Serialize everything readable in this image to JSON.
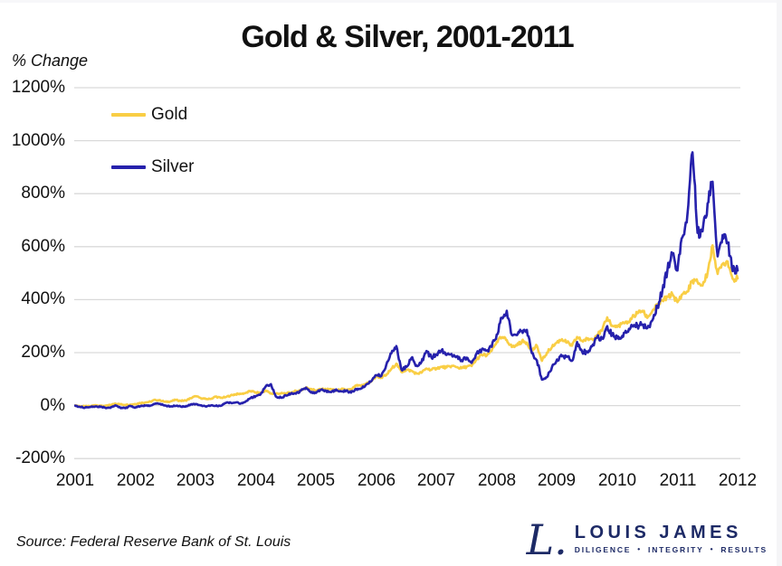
{
  "title": "Gold & Silver, 2001-2011",
  "y_axis_title": "% Change",
  "legend": {
    "items": [
      {
        "label": "Gold",
        "color": "#F9CE45"
      },
      {
        "label": "Silver",
        "color": "#2621AC"
      }
    ]
  },
  "footer": {
    "source": "Source: Federal Reserve Bank of St. Louis"
  },
  "logo": {
    "monogram": "L.",
    "name": "LOUIS JAMES",
    "tagline_parts": [
      "DILIGENCE",
      "INTEGRITY",
      "RESULTS"
    ],
    "color": "#1D2A66"
  },
  "chart_data": {
    "type": "line",
    "title": "Gold & Silver, 2001-2011",
    "xlabel": "",
    "ylabel": "% Change",
    "grid": true,
    "grid_color": "#D9D9D9",
    "legend_position": "top-left-inside",
    "x_start_year": 2001,
    "points_per_month": 1,
    "x_ticks": [
      2001,
      2002,
      2003,
      2004,
      2005,
      2006,
      2007,
      2008,
      2009,
      2010,
      2011,
      2012
    ],
    "y_ticks": [
      1200,
      1000,
      800,
      600,
      400,
      200,
      0,
      -200
    ],
    "ylim": [
      -200,
      1200
    ],
    "xlim": [
      2001,
      2012.06
    ],
    "unit": "percent change since Jan 2001",
    "series": [
      {
        "name": "Gold",
        "color": "#F9CE45",
        "values": [
          0,
          -2,
          -3,
          -2,
          2,
          0,
          -1,
          2,
          8,
          5,
          3,
          4,
          6,
          10,
          12,
          15,
          22,
          19,
          14,
          16,
          21,
          18,
          19,
          28,
          35,
          29,
          25,
          25,
          34,
          29,
          32,
          39,
          43,
          44,
          48,
          55,
          50,
          48,
          57,
          45,
          46,
          46,
          46,
          49,
          55,
          58,
          68,
          63,
          57,
          62,
          61,
          62,
          56,
          62,
          60,
          61,
          75,
          74,
          84,
          91,
          111,
          106,
          115,
          139,
          158,
          127,
          135,
          131,
          121,
          124,
          140,
          135,
          141,
          146,
          144,
          150,
          145,
          141,
          147,
          149,
          175,
          192,
          189,
          207,
          241,
          258,
          248,
          221,
          227,
          243,
          238,
          207,
          226,
          169,
          200,
          221,
          239,
          251,
          238,
          226,
          259,
          244,
          251,
          252,
          267,
          283,
          333,
          302,
          297,
          312,
          310,
          334,
          348,
          358,
          331,
          358,
          381,
          396,
          410,
          420,
          390,
          420,
          430,
          473,
          466,
          453,
          501,
          605,
          497,
          535,
          544,
          478,
          480
        ]
      },
      {
        "name": "Silver",
        "color": "#2621AC",
        "values": [
          0,
          -5,
          -7,
          -5,
          -3,
          -5,
          -8,
          -9,
          1,
          -8,
          -10,
          -1,
          -8,
          -2,
          0,
          0,
          8,
          6,
          0,
          -3,
          -1,
          -3,
          -4,
          4,
          6,
          1,
          -3,
          0,
          -1,
          -1,
          10,
          11,
          12,
          8,
          16,
          29,
          36,
          44,
          73,
          81,
          34,
          30,
          38,
          46,
          45,
          57,
          68,
          49,
          48,
          60,
          56,
          51,
          61,
          54,
          56,
          49,
          63,
          65,
          80,
          92,
          115,
          112,
          154,
          197,
          225,
          137,
          146,
          180,
          152,
          165,
          206,
          181,
          193,
          209,
          191,
          195,
          186,
          171,
          181,
          161,
          198,
          212,
          208,
          222,
          268,
          332,
          358,
          267,
          266,
          281,
          286,
          198,
          170,
          98,
          107,
          146,
          174,
          186,
          186,
          169,
          240,
          204,
          202,
          224,
          258,
          254,
          300,
          267,
          254,
          263,
          279,
          300,
          301,
          305,
          292,
          322,
          373,
          435,
          511,
          573,
          510,
          636,
          725,
          956,
          652,
          658,
          763,
          845,
          563,
          644,
          615,
          508,
          510
        ]
      }
    ]
  }
}
